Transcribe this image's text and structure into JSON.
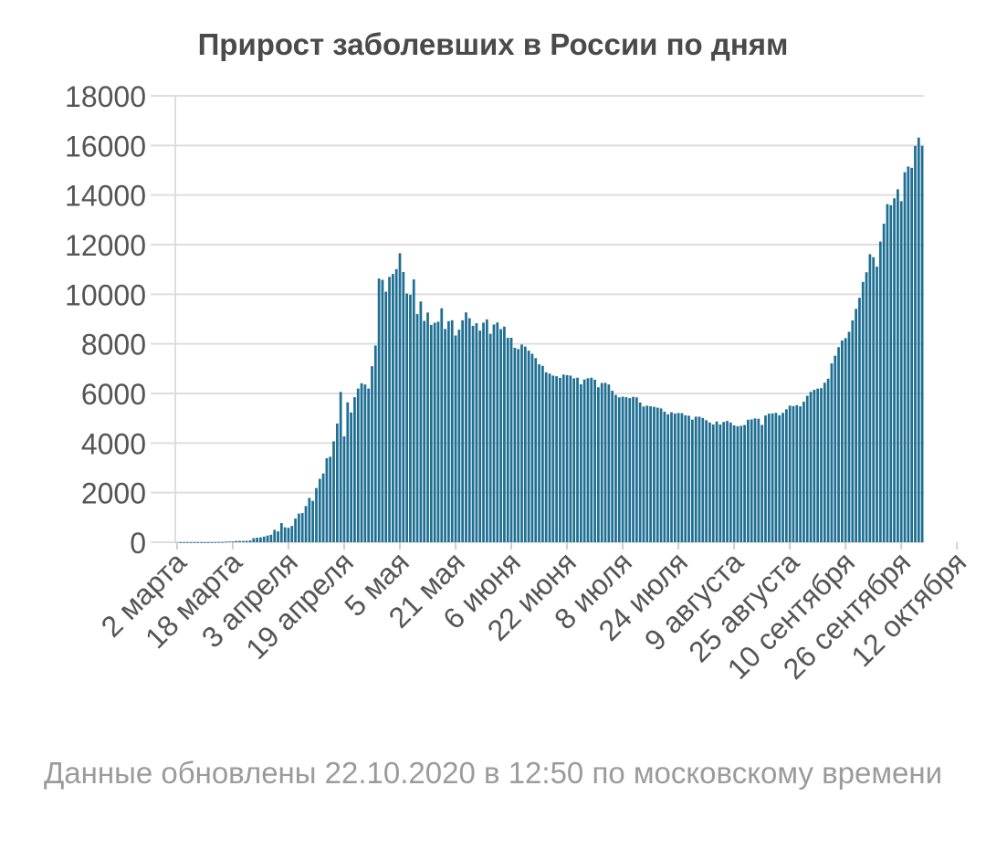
{
  "chart_data": {
    "type": "bar",
    "title": "Прирост заболевших в России по дням",
    "xlabel": "",
    "ylabel": "",
    "ylim": [
      0,
      18000
    ],
    "yticks": [
      0,
      2000,
      4000,
      6000,
      8000,
      10000,
      12000,
      14000,
      16000,
      18000
    ],
    "grid": "horizontal",
    "legend": "none",
    "bar_color": "#1f6f93",
    "x_start": "2020-03-02",
    "x_tick_labels": [
      {
        "date": "2020-03-02",
        "label": "2 марта"
      },
      {
        "date": "2020-03-18",
        "label": "18 марта"
      },
      {
        "date": "2020-04-03",
        "label": "3 апреля"
      },
      {
        "date": "2020-04-19",
        "label": "19 апреля"
      },
      {
        "date": "2020-05-05",
        "label": "5 мая"
      },
      {
        "date": "2020-05-21",
        "label": "21 мая"
      },
      {
        "date": "2020-06-06",
        "label": "6 июня"
      },
      {
        "date": "2020-06-22",
        "label": "22 июня"
      },
      {
        "date": "2020-07-08",
        "label": "8 июля"
      },
      {
        "date": "2020-07-24",
        "label": "24 июля"
      },
      {
        "date": "2020-08-09",
        "label": "9 августа"
      },
      {
        "date": "2020-08-25",
        "label": "25 августа"
      },
      {
        "date": "2020-09-10",
        "label": "10 сентября"
      },
      {
        "date": "2020-09-26",
        "label": "26 сентября"
      },
      {
        "date": "2020-10-12",
        "label": "12 октября"
      }
    ],
    "values": [
      0,
      0,
      0,
      0,
      0,
      0,
      0,
      0,
      0,
      0,
      1,
      5,
      5,
      10,
      20,
      30,
      33,
      52,
      54,
      53,
      57,
      71,
      163,
      182,
      196,
      228,
      270,
      302,
      500,
      440,
      771,
      601,
      582,
      658,
      954,
      1154,
      1175,
      1459,
      1786,
      1667,
      2186,
      2558,
      2774,
      3388,
      3448,
      4070,
      4785,
      6060,
      4268,
      5642,
      5236,
      5849,
      6198,
      6411,
      6361,
      6198,
      7099,
      7933,
      10633,
      10581,
      10102,
      10699,
      10817,
      11012,
      11656,
      10899,
      10028,
      9974,
      10598,
      9200,
      9709,
      8926,
      9263,
      8764,
      8849,
      8894,
      9434,
      8599,
      8915,
      8952,
      8338,
      8572,
      8952,
      9268,
      9035,
      8726,
      8831,
      8536,
      8855,
      8985,
      8404,
      8779,
      8863,
      8595,
      8694,
      8248,
      8246,
      7843,
      7790,
      7972,
      7889,
      7728,
      7600,
      7425,
      7176,
      7113,
      6852,
      6800,
      6719,
      6693,
      6632,
      6760,
      6736,
      6719,
      6611,
      6635,
      6368,
      6562,
      6615,
      6635,
      6556,
      6248,
      6422,
      6428,
      6361,
      6109,
      5940,
      5842,
      5871,
      5848,
      5811,
      5862,
      5842,
      5635,
      5475,
      5509,
      5482,
      5462,
      5427,
      5395,
      5267,
      5159,
      5241,
      5189,
      5212,
      5204,
      5118,
      5102,
      4945,
      5065,
      5061,
      5012,
      4921,
      4828,
      4748,
      4870,
      4748,
      4852,
      4892,
      4829,
      4711,
      4676,
      4696,
      4729,
      4941,
      4952,
      4993,
      4980,
      4729,
      5110,
      5185,
      5195,
      5218,
      5118,
      5218,
      5363,
      5509,
      5488,
      5529,
      5478,
      5670,
      5905,
      6065,
      6148,
      6196,
      6215,
      6431,
      6595,
      7212,
      7523,
      7867,
      8135,
      8232,
      8485,
      8945,
      9412,
      9859,
      10499,
      10888,
      11615,
      11493,
      11115,
      12126,
      12846,
      13634,
      13592,
      13868,
      14231,
      13754,
      14922,
      15150,
      15099,
      15982,
      16319,
      15982
    ]
  },
  "footnote": "Данные обновлены 22.10.2020 в 12:50 по московскому времени"
}
